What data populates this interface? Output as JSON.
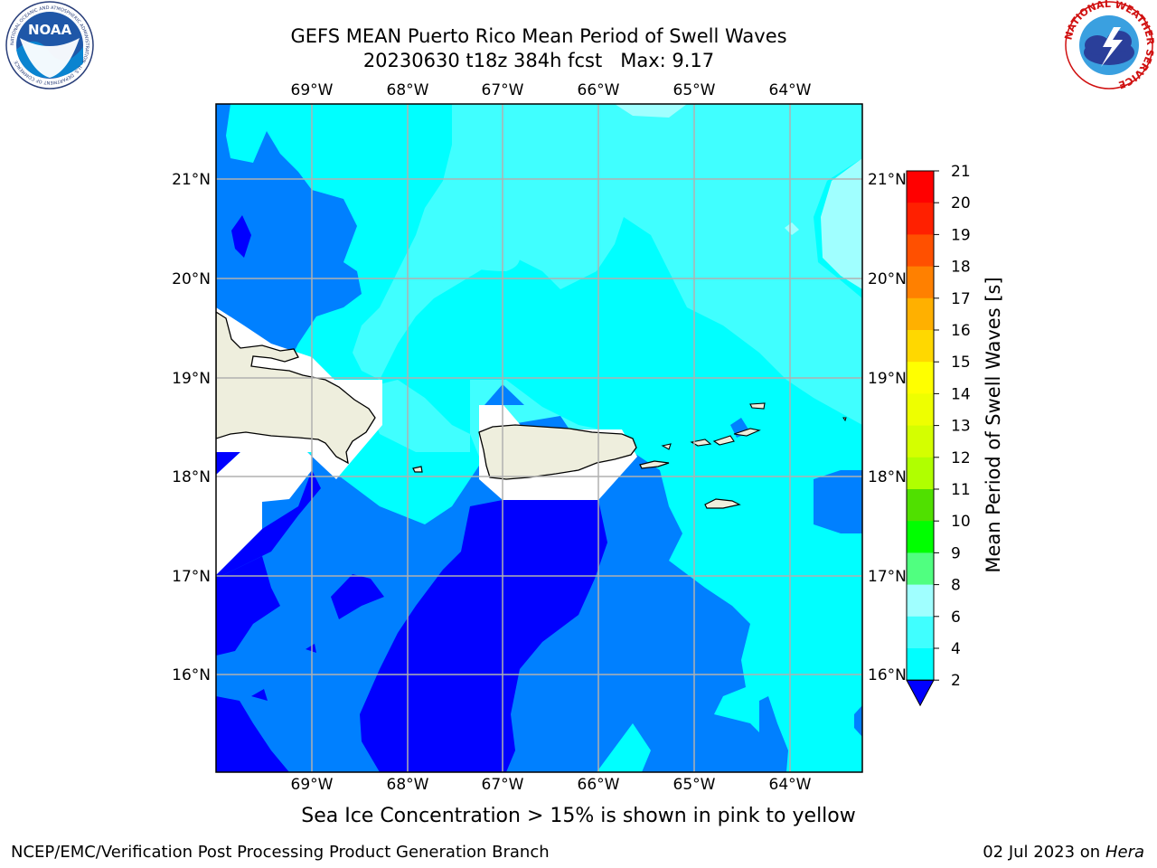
{
  "header": {
    "title_line1": "GEFS MEAN Puerto Rico Mean Period of Swell Waves",
    "title_line2": "20230630 t18z 384h fcst   Max: 9.17"
  },
  "logos": {
    "noaa": {
      "text": "NOAA",
      "ring_text": "NATIONAL OCEANIC AND ATMOSPHERIC ADMINISTRATION · U.S. DEPARTMENT OF COMMERCE"
    },
    "nws": {
      "ring_text": "NATIONAL WEATHER SERVICE"
    }
  },
  "map": {
    "lon_labels": [
      "69°W",
      "68°W",
      "67°W",
      "66°W",
      "65°W",
      "64°W"
    ],
    "lat_labels": [
      "21°N",
      "20°N",
      "19°N",
      "18°N",
      "17°N",
      "16°N"
    ],
    "colors": {
      "lt2": "#0000ff",
      "c2_4": "#0080ff",
      "c4_6": "#00ffff",
      "c6_8": "#40ffff",
      "c8_9": "#a0ffff",
      "land": "#eeeedd",
      "mask": "#ffffff",
      "grid": "#b0b0b0"
    }
  },
  "colorbar": {
    "label": "Mean Period of Swell Waves [s]",
    "ticks": [
      "21",
      "20",
      "19",
      "18",
      "17",
      "16",
      "15",
      "14",
      "13",
      "12",
      "11",
      "10",
      "9",
      "8",
      "6",
      "4",
      "2"
    ],
    "colors": [
      "#ff0000",
      "#ff2000",
      "#ff5000",
      "#ff8000",
      "#ffb000",
      "#ffd800",
      "#ffff00",
      "#eeff00",
      "#d4ff00",
      "#b0ff00",
      "#50e000",
      "#00ff00",
      "#50ff80",
      "#a0ffff",
      "#40ffff",
      "#00ffff",
      "#0080ff"
    ],
    "under_color": "#0000ff"
  },
  "notes": {
    "ice": "Sea Ice Concentration > 15% is shown in pink to yellow"
  },
  "footer": {
    "left": "NCEP/EMC/Verification Post Processing Product Generation Branch",
    "date": "02 Jul 2023 on ",
    "machine": "Hera"
  }
}
